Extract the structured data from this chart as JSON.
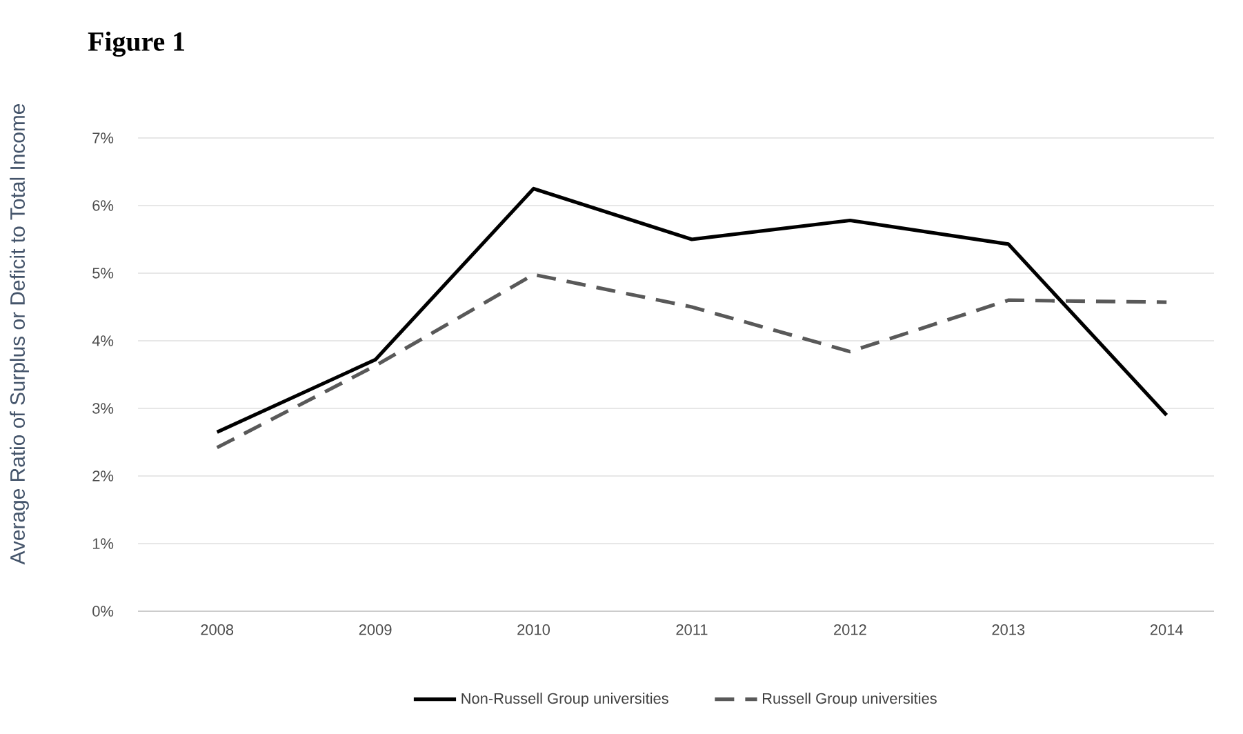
{
  "chart_data": {
    "type": "line",
    "title": "Figure 1",
    "ylabel": "Average Ratio of Surplus  or Deficit to Total Income",
    "categories": [
      "2008",
      "2009",
      "2010",
      "2011",
      "2012",
      "2013",
      "2014"
    ],
    "series": [
      {
        "name": "Non-Russell Group universities",
        "color": "#000000",
        "line_style": "solid",
        "values": [
          2.65,
          3.72,
          6.25,
          5.5,
          5.78,
          5.43,
          2.9
        ]
      },
      {
        "name": "Russell Group universities",
        "color": "#595959",
        "line_style": "dashed",
        "values": [
          2.42,
          3.63,
          4.98,
          4.5,
          3.84,
          4.6,
          4.57
        ]
      }
    ],
    "ylim": [
      0,
      7
    ],
    "yticks": [
      {
        "value": 0,
        "label": "0%"
      },
      {
        "value": 1,
        "label": "1%"
      },
      {
        "value": 2,
        "label": "2%"
      },
      {
        "value": 3,
        "label": "3%"
      },
      {
        "value": 4,
        "label": "4%"
      },
      {
        "value": 5,
        "label": "5%"
      },
      {
        "value": 6,
        "label": "6%"
      },
      {
        "value": 7,
        "label": "7%"
      }
    ],
    "grid": "y",
    "legend": "bottom",
    "marker": "none"
  }
}
